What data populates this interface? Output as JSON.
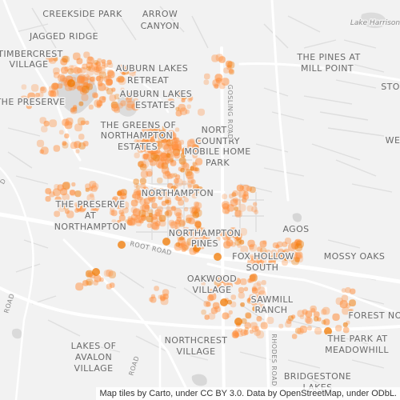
{
  "map": {
    "areas": {
      "creekside_park": "CREEKSIDE PARK",
      "arrow": "ARROW",
      "canyon": "CANYON",
      "jagged_ridge": "JAGGED RIDGE",
      "lake_harrison": "Lake Harrison",
      "timbercrest": "TIMBERCREST",
      "village1": "VILLAGE",
      "the_pines_at": "THE PINES AT",
      "mill_point": "MILL POINT",
      "sto": "STO",
      "auburn_lakes": "AUBURN LAKES",
      "retreat": "RETREAT",
      "the_preserve": "THE PRESERVE",
      "auburn_lakes2": "AUBURN LAKES",
      "estates1": "ESTATES",
      "we": "WE",
      "the_greens_of": "THE GREENS OF",
      "northampton1": "NORTHAMPTON",
      "estates2": "ESTATES",
      "north": "NORTH",
      "country": "COUNTRY",
      "mobile_home": "MOBILE HOME",
      "park": "PARK",
      "northampton_main": "NORTHAMPTON",
      "the_preserve2": "THE PRESERVE",
      "at": "AT",
      "northampton2": "NORTHAMPTON",
      "northampton3": "NORTHAMPTON",
      "pines": "PINES",
      "agos": "AGOS",
      "mossy_oaks": "MOSSY OAKS",
      "fox_hollow": "FOX HOLLOW",
      "south": "SOUTH",
      "oakwood": "OAKWOOD",
      "village2": "VILLAGE",
      "sawmill": "SAWMILL",
      "ranch": "RANCH",
      "forest_no": "FOREST NO",
      "lakes_of": "LAKES OF",
      "avalon": "AVALON",
      "village3": "VILLAGE",
      "northcrest": "NORTHCREST",
      "village4": "VILLAGE",
      "the_park_at": "THE PARK AT",
      "meadowhill": "MEADOWHILL",
      "bridgestone": "BRIDGESTONE",
      "lakes": "LAKES"
    },
    "roads": {
      "gosling": "GOSLING ROAD",
      "root": "ROOT ROAD",
      "road_sw": "ROAD",
      "rhodes": "RHODES ROAD",
      "road_sw2": "ROAD",
      "d_fragment": "D"
    },
    "colors": {
      "background": "#f2f2f2",
      "water": "#d6d6d6",
      "road_major": "#ffffff",
      "road_minor": "#e2e2e2",
      "dot": "#ff9040",
      "dot_dark": "#f07800"
    }
  },
  "attribution": "Map tiles by Carto, under CC BY 3.0. Data by OpenStreetMap, under ODbL."
}
